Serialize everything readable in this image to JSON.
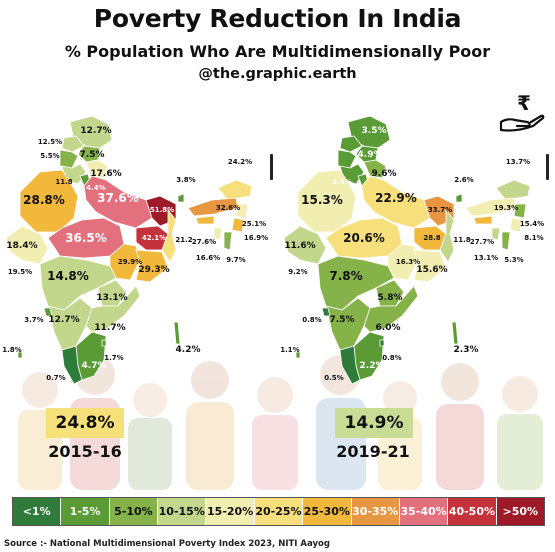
{
  "header": {
    "title": "Poverty Reduction In India",
    "subtitle": "% Population Who Are Multidimensionally Poor",
    "handle": "@the.graphic.earth"
  },
  "colors": {
    "lt1": "#2e7b3a",
    "1-5": "#5a9b36",
    "5-10": "#86b24a",
    "10-15": "#c2d68c",
    "15-20": "#f2eeb2",
    "20-25": "#f7df7c",
    "25-30": "#f2b83c",
    "30-35": "#e89642",
    "35-40": "#e3707d",
    "40-50": "#c4323c",
    "gt50": "#9e1a28"
  },
  "maps": {
    "left": {
      "year": "2015-16",
      "overall": "24.8%",
      "labels": {
        "jk": "12.7%",
        "hp": "12.5%",
        "hp2": "7.5%",
        "pb": "5.5%",
        "uk": "17.6%",
        "hr": "11.8",
        "dl": "4.4%",
        "rj": "28.8%",
        "up": "37.6%",
        "br": "51.8%",
        "gj": "18.4%",
        "mp": "36.5%",
        "jh": "42.1%",
        "wb": "21.2",
        "dd": "19.5%",
        "mh": "14.8%",
        "ct": "29.9%",
        "od": "29.3%",
        "tg": "13.1%",
        "ka": "12.7%",
        "ap": "11.7%",
        "tn": "4.7%",
        "kl": "0.7%",
        "goa": "3.7%",
        "ld": "1.8%",
        "py": "1.7%",
        "an": "4.2%",
        "sk": "3.8%",
        "ar": "24.2%",
        "as": "32.6%",
        "ml": "27.6%",
        "mn": "25.1%",
        "nl": "16.9%",
        "tr": "16.6%",
        "mz": "9.7%"
      }
    },
    "right": {
      "year": "2019-21",
      "overall": "14.9%",
      "labels": {
        "jk": "3.5%",
        "hp": "4.8%",
        "hp2": "4.9%",
        "pb": "4.7%",
        "uk": "9.6%",
        "hr": "3.4%",
        "rj": "15.3%",
        "up": "22.9%",
        "br": "33.7%",
        "gj": "11.6%",
        "mp": "20.6%",
        "jh": "28.8",
        "wb": "11.8",
        "od": "15.6%",
        "ct": "16.3%",
        "dd": "9.2%",
        "mh": "7.8%",
        "tg": "5.8%",
        "ka": "7.5%",
        "ap": "6.0%",
        "tn": "2.2%",
        "kl": "0.5%",
        "goa": "0.8%",
        "ld": "1.1%",
        "py": "0.8%",
        "an": "2.3%",
        "sk": "2.6%",
        "ar": "13.7%",
        "as": "19.3%",
        "ml": "27.7%",
        "mn": "15.4%",
        "nl": "8.1%",
        "tr": "13.1%",
        "mz": "5.3%"
      }
    }
  },
  "legend": [
    {
      "label": "<1%",
      "color": "#2e7b3a",
      "text_color": "#ffffff"
    },
    {
      "label": "1-5%",
      "color": "#5a9b36",
      "text_color": "#ffffff"
    },
    {
      "label": "5-10%",
      "color": "#86b24a",
      "text_color": "#111111"
    },
    {
      "label": "10-15%",
      "color": "#c2d68c",
      "text_color": "#111111"
    },
    {
      "label": "15-20%",
      "color": "#f2eeb2",
      "text_color": "#111111"
    },
    {
      "label": "20-25%",
      "color": "#f7df7c",
      "text_color": "#111111"
    },
    {
      "label": "25-30%",
      "color": "#f2b83c",
      "text_color": "#111111"
    },
    {
      "label": "30-35%",
      "color": "#e89642",
      "text_color": "#ffffff"
    },
    {
      "label": "35-40%",
      "color": "#e3707d",
      "text_color": "#ffffff"
    },
    {
      "label": "40-50%",
      "color": "#c4323c",
      "text_color": "#ffffff"
    },
    {
      "label": ">50%",
      "color": "#9e1a28",
      "text_color": "#ffffff"
    }
  ],
  "source": "Source :- National Multidimensional Poverty Index 2023, NITI Aayog",
  "icon": "rupee-hand-icon"
}
